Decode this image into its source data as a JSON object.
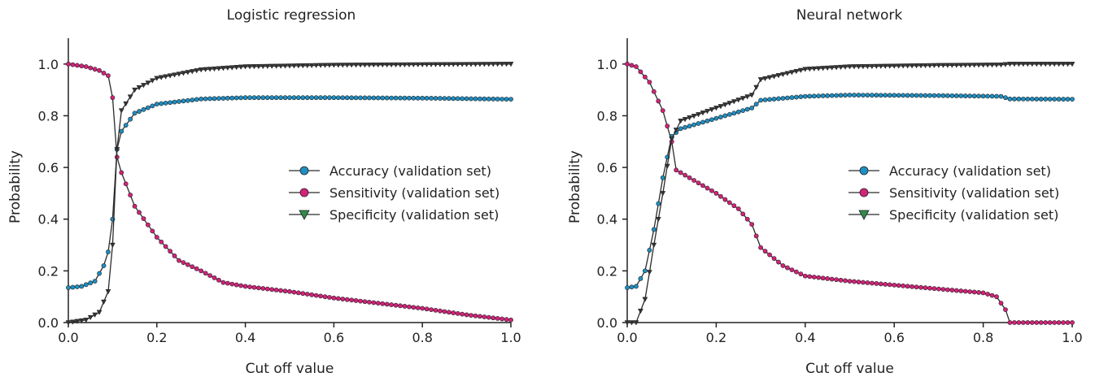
{
  "chart_data": [
    {
      "type": "line",
      "title": "Logistic regression",
      "xlabel": "Cut off value",
      "ylabel": "Probability",
      "xlim": [
        0,
        1
      ],
      "ylim": [
        0,
        1.1
      ],
      "xticks": [
        "0.0",
        "0.2",
        "0.4",
        "0.6",
        "0.8",
        "1.0"
      ],
      "yticks": [
        "0.0",
        "0.2",
        "0.4",
        "0.6",
        "0.8",
        "1.0"
      ],
      "grid": false,
      "legend_position": "center-right",
      "x": [
        0,
        0.1,
        0.11,
        0.2,
        0.3,
        0.4,
        0.5,
        0.6,
        0.7,
        0.8,
        0.9,
        1.0
      ],
      "series": [
        {
          "name": "Accuracy (validation set)",
          "marker": "circle",
          "color": "#1d8fc4",
          "anchors": [
            [
              0,
              0.135
            ],
            [
              0.03,
              0.14
            ],
            [
              0.06,
              0.16
            ],
            [
              0.08,
              0.22
            ],
            [
              0.095,
              0.3
            ],
            [
              0.105,
              0.5
            ],
            [
              0.11,
              0.67
            ],
            [
              0.12,
              0.74
            ],
            [
              0.15,
              0.81
            ],
            [
              0.2,
              0.845
            ],
            [
              0.3,
              0.865
            ],
            [
              0.4,
              0.87
            ],
            [
              0.6,
              0.87
            ],
            [
              0.8,
              0.868
            ],
            [
              1.0,
              0.864
            ]
          ]
        },
        {
          "name": "Sensitivity (validation set)",
          "marker": "circle",
          "color": "#d6217a",
          "anchors": [
            [
              0,
              1.0
            ],
            [
              0.04,
              0.99
            ],
            [
              0.07,
              0.975
            ],
            [
              0.09,
              0.955
            ],
            [
              0.095,
              0.93
            ],
            [
              0.1,
              0.87
            ],
            [
              0.11,
              0.64
            ],
            [
              0.12,
              0.58
            ],
            [
              0.15,
              0.45
            ],
            [
              0.2,
              0.33
            ],
            [
              0.25,
              0.24
            ],
            [
              0.3,
              0.2
            ],
            [
              0.35,
              0.155
            ],
            [
              0.4,
              0.14
            ],
            [
              0.5,
              0.12
            ],
            [
              0.6,
              0.095
            ],
            [
              0.7,
              0.075
            ],
            [
              0.8,
              0.055
            ],
            [
              0.9,
              0.03
            ],
            [
              1.0,
              0.01
            ]
          ]
        },
        {
          "name": "Specificity (validation set)",
          "marker": "triangle-down",
          "color": "#2f8c4a",
          "anchors": [
            [
              0,
              0.0
            ],
            [
              0.04,
              0.01
            ],
            [
              0.07,
              0.04
            ],
            [
              0.09,
              0.12
            ],
            [
              0.095,
              0.17
            ],
            [
              0.1,
              0.3
            ],
            [
              0.11,
              0.67
            ],
            [
              0.12,
              0.82
            ],
            [
              0.15,
              0.9
            ],
            [
              0.2,
              0.945
            ],
            [
              0.3,
              0.978
            ],
            [
              0.4,
              0.99
            ],
            [
              0.6,
              0.996
            ],
            [
              0.8,
              0.998
            ],
            [
              1.0,
              1.0
            ]
          ]
        }
      ]
    },
    {
      "type": "line",
      "title": "Neural network",
      "xlabel": "Cut off value",
      "ylabel": "Probability",
      "xlim": [
        0,
        1
      ],
      "ylim": [
        0,
        1.1
      ],
      "xticks": [
        "0.0",
        "0.2",
        "0.4",
        "0.6",
        "0.8",
        "1.0"
      ],
      "yticks": [
        "0.0",
        "0.2",
        "0.4",
        "0.6",
        "0.8",
        "1.0"
      ],
      "grid": false,
      "legend_position": "center-right",
      "series": [
        {
          "name": "Accuracy (validation set)",
          "marker": "circle",
          "color": "#1d8fc4",
          "anchors": [
            [
              0,
              0.135
            ],
            [
              0.02,
              0.14
            ],
            [
              0.04,
              0.2
            ],
            [
              0.06,
              0.36
            ],
            [
              0.08,
              0.56
            ],
            [
              0.1,
              0.72
            ],
            [
              0.12,
              0.75
            ],
            [
              0.2,
              0.79
            ],
            [
              0.28,
              0.83
            ],
            [
              0.3,
              0.86
            ],
            [
              0.4,
              0.875
            ],
            [
              0.5,
              0.88
            ],
            [
              0.7,
              0.878
            ],
            [
              0.84,
              0.875
            ],
            [
              0.86,
              0.865
            ],
            [
              1.0,
              0.864
            ]
          ]
        },
        {
          "name": "Sensitivity (validation set)",
          "marker": "circle",
          "color": "#d6217a",
          "anchors": [
            [
              0,
              1.0
            ],
            [
              0.02,
              0.99
            ],
            [
              0.05,
              0.93
            ],
            [
              0.08,
              0.82
            ],
            [
              0.1,
              0.7
            ],
            [
              0.11,
              0.59
            ],
            [
              0.15,
              0.55
            ],
            [
              0.2,
              0.5
            ],
            [
              0.25,
              0.44
            ],
            [
              0.28,
              0.38
            ],
            [
              0.3,
              0.29
            ],
            [
              0.35,
              0.22
            ],
            [
              0.4,
              0.18
            ],
            [
              0.5,
              0.16
            ],
            [
              0.6,
              0.145
            ],
            [
              0.7,
              0.13
            ],
            [
              0.8,
              0.115
            ],
            [
              0.83,
              0.1
            ],
            [
              0.85,
              0.05
            ],
            [
              0.86,
              0.0
            ],
            [
              1.0,
              0.0
            ]
          ]
        },
        {
          "name": "Specificity (validation set)",
          "marker": "triangle-down",
          "color": "#2f8c4a",
          "anchors": [
            [
              0,
              0.0
            ],
            [
              0.02,
              0.0
            ],
            [
              0.04,
              0.09
            ],
            [
              0.06,
              0.3
            ],
            [
              0.08,
              0.5
            ],
            [
              0.1,
              0.71
            ],
            [
              0.12,
              0.78
            ],
            [
              0.2,
              0.83
            ],
            [
              0.28,
              0.88
            ],
            [
              0.3,
              0.94
            ],
            [
              0.4,
              0.98
            ],
            [
              0.5,
              0.99
            ],
            [
              0.7,
              0.995
            ],
            [
              0.84,
              0.997
            ],
            [
              0.86,
              1.0
            ],
            [
              1.0,
              1.0
            ]
          ]
        }
      ]
    }
  ]
}
